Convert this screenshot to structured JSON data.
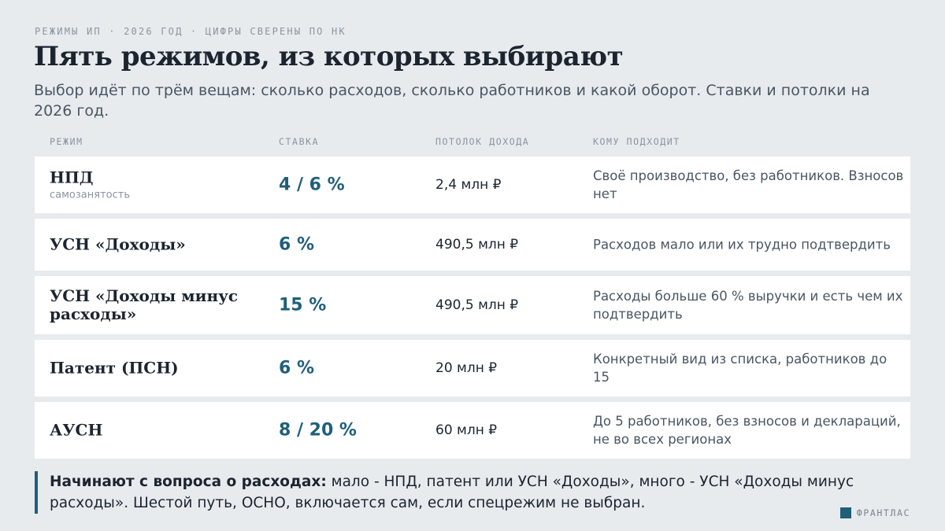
{
  "kicker": "РЕЖИМЫ ИП · 2026 ГОД · ЦИФРЫ СВЕРЕНЫ ПО НК",
  "title": "Пять режимов, из которых выбирают",
  "subtitle": "Выбор идёт по трём вещам: сколько расходов, сколько работников и какой оборот. Ставки и потолки на 2026 год.",
  "table": {
    "headers": {
      "regime": "РЕЖИМ",
      "rate": "СТАВКА",
      "limit": "ПОТОЛОК ДОХОДА",
      "fit": "КОМУ ПОДХОДИТ"
    },
    "rows": [
      {
        "name": "НПД",
        "sub": "самозанятость",
        "rate": "4 / 6 %",
        "limit": "2,4 млн ₽",
        "fit": "Своё производство, без работников. Взносов нет"
      },
      {
        "name": "УСН «Доходы»",
        "sub": "",
        "rate": "6 %",
        "limit": "490,5 млн ₽",
        "fit": "Расходов мало или их трудно подтвердить"
      },
      {
        "name": "УСН «Доходы минус расходы»",
        "sub": "",
        "rate": "15 %",
        "limit": "490,5 млн ₽",
        "fit": "Расходы больше 60 % выручки и есть чем их подтвердить"
      },
      {
        "name": "Патент (ПСН)",
        "sub": "",
        "rate": "6 %",
        "limit": "20 млн ₽",
        "fit": "Конкретный вид из списка, работников до 15"
      },
      {
        "name": "АУСН",
        "sub": "",
        "rate": "8 / 20 %",
        "limit": "60 млн ₽",
        "fit": "До 5 работников, без взносов и деклараций, не во всех регионах"
      }
    ]
  },
  "note": {
    "lead": "Начинают с вопроса о расходах:",
    "text": " мало - НПД, патент или УСН «Доходы», много - УСН «Доходы минус расходы». Шестой путь, ОСНО, включается сам, если спецрежим не выбран."
  },
  "brand": "ФРАНТЛАС",
  "colors": {
    "accent": "#1f5f7a",
    "background": "#e8ebee",
    "card": "#ffffff"
  }
}
